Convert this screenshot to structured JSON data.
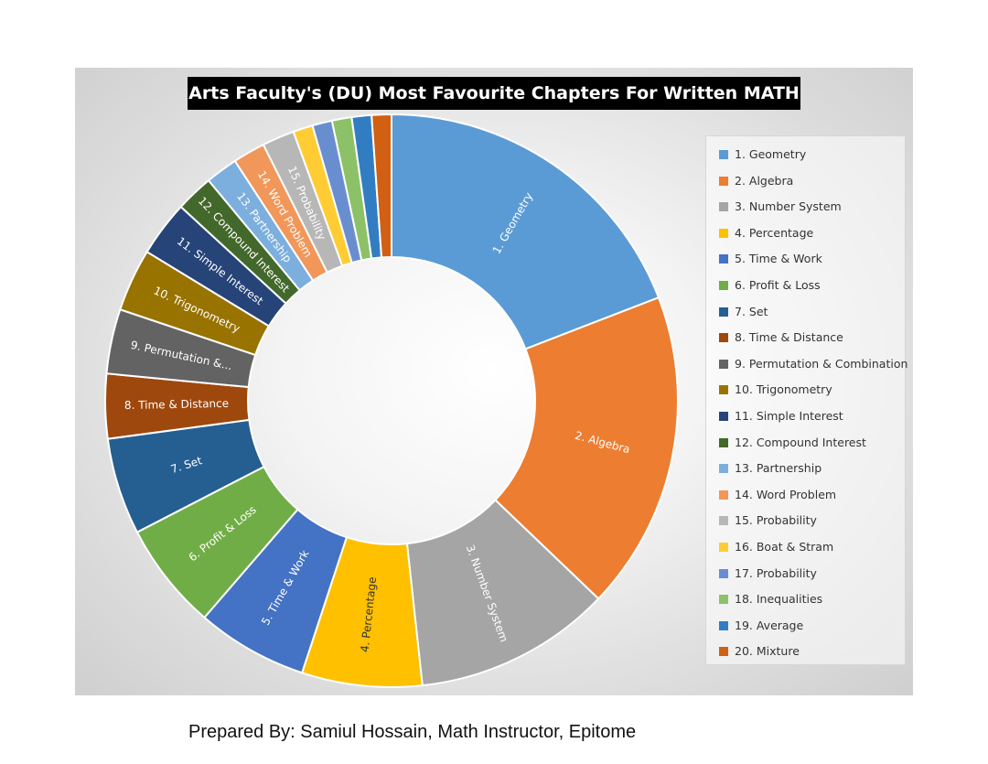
{
  "chart_data": {
    "type": "pie",
    "variant": "donut",
    "title": "Arts Faculty's (DU) Most Favourite Chapters For Written MATH",
    "legend_position": "right",
    "categories": [
      "1. Geometry",
      "2. Algebra",
      "3. Number System",
      "4. Percentage",
      "5. Time & Work",
      "6. Profit & Loss",
      "7. Set",
      "8. Time & Distance",
      "9. Permutation & Combination",
      "10. Trigonometry",
      "11. Simple Interest",
      "12. Compound Interest",
      "13. Partnership",
      "14. Word Problem",
      "15. Probability",
      "16. Boat & Stram",
      "17. Probability",
      "18. Inequalities",
      "19. Average",
      "20. Mixture"
    ],
    "slice_labels": [
      "1. Geometry",
      "2. Algebra",
      "3. Number System",
      "4. Percentage",
      "5. Time & Work",
      "6. Profit & Loss",
      "7. Set",
      "8. Time & Distance",
      "9. Permutation &...",
      "10. Trigonometry",
      "11. Simple Interest",
      "12. Compound Interest",
      "13. Partnership",
      "14. Word Problem",
      "15. Probability",
      "",
      "",
      "",
      "",
      ""
    ],
    "values": [
      18.9,
      17.8,
      11.0,
      6.7,
      6.2,
      6.0,
      5.4,
      3.6,
      3.6,
      3.5,
      3.1,
      2.1,
      1.8,
      1.8,
      1.8,
      1.1,
      1.1,
      1.1,
      1.1,
      1.1
    ],
    "colors": [
      "#5B9BD5",
      "#ED7D31",
      "#A5A5A5",
      "#FFC000",
      "#4472C4",
      "#70AD47",
      "#255E91",
      "#9E480E",
      "#636363",
      "#997300",
      "#264478",
      "#43682B",
      "#7CAFDD",
      "#F1975A",
      "#B7B7B7",
      "#FFCD33",
      "#698ED0",
      "#8CC168",
      "#327DC2",
      "#D26012"
    ]
  },
  "footer": {
    "credit": "Prepared By: Samiul Hossain, Math Instructor, Epitome"
  }
}
